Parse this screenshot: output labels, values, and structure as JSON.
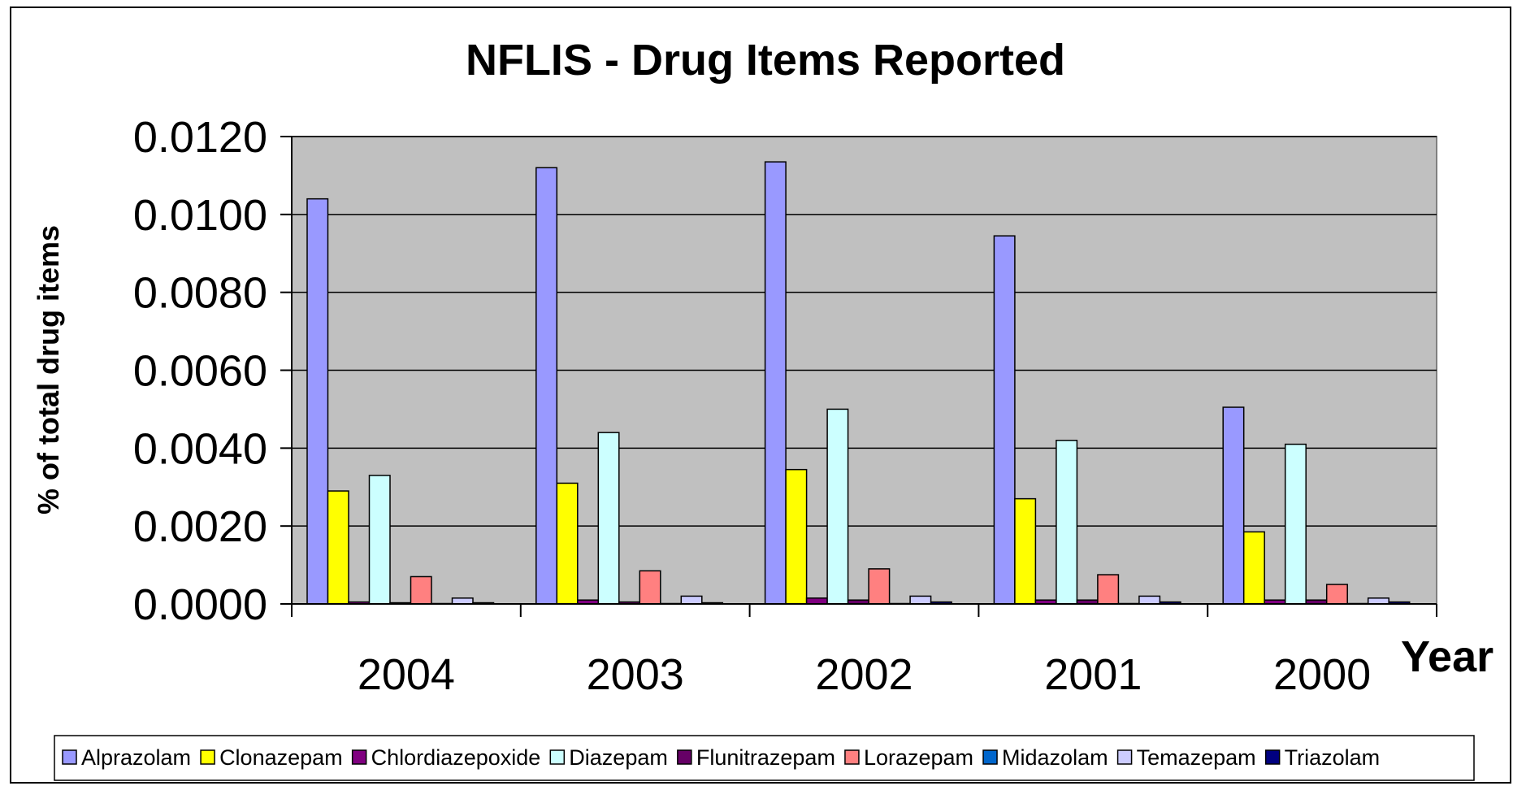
{
  "chart_data": {
    "type": "bar",
    "title": "NFLIS - Drug Items Reported",
    "ylabel": "% of total drug items",
    "xlabel": "Year",
    "categories": [
      "2004",
      "2003",
      "2002",
      "2001",
      "2000"
    ],
    "ylim": [
      0,
      0.012
    ],
    "yticks": [
      "0.0000",
      "0.0020",
      "0.0040",
      "0.0060",
      "0.0080",
      "0.0100",
      "0.0120"
    ],
    "ytick_values": [
      0,
      0.002,
      0.004,
      0.006,
      0.008,
      0.01,
      0.012
    ],
    "grid": true,
    "legend_position": "bottom",
    "series": [
      {
        "name": "Alprazolam",
        "color": "#9999ff",
        "values": [
          0.0104,
          0.0112,
          0.01135,
          0.00945,
          0.00505
        ]
      },
      {
        "name": "Clonazepam",
        "color": "#ffff00",
        "values": [
          0.0029,
          0.0031,
          0.00345,
          0.0027,
          0.00185
        ]
      },
      {
        "name": "Chlordiazepoxide",
        "color": "#800080",
        "values": [
          5e-05,
          0.0001,
          0.00015,
          0.0001,
          0.0001
        ]
      },
      {
        "name": "Diazepam",
        "color": "#ccffff",
        "values": [
          0.0033,
          0.0044,
          0.005,
          0.0042,
          0.0041
        ]
      },
      {
        "name": "Flunitrazepam",
        "color": "#660066",
        "values": [
          3e-05,
          5e-05,
          0.0001,
          0.0001,
          0.0001
        ]
      },
      {
        "name": "Lorazepam",
        "color": "#ff8080",
        "values": [
          0.0007,
          0.00085,
          0.0009,
          0.00075,
          0.0005
        ]
      },
      {
        "name": "Midazolam",
        "color": "#0066cc",
        "values": [
          1e-05,
          1e-05,
          1e-05,
          1e-05,
          1e-05
        ]
      },
      {
        "name": "Temazepam",
        "color": "#ccccff",
        "values": [
          0.00015,
          0.0002,
          0.0002,
          0.0002,
          0.00015
        ]
      },
      {
        "name": "Triazolam",
        "color": "#000080",
        "values": [
          3e-05,
          3e-05,
          5e-05,
          5e-05,
          5e-05
        ]
      }
    ]
  }
}
